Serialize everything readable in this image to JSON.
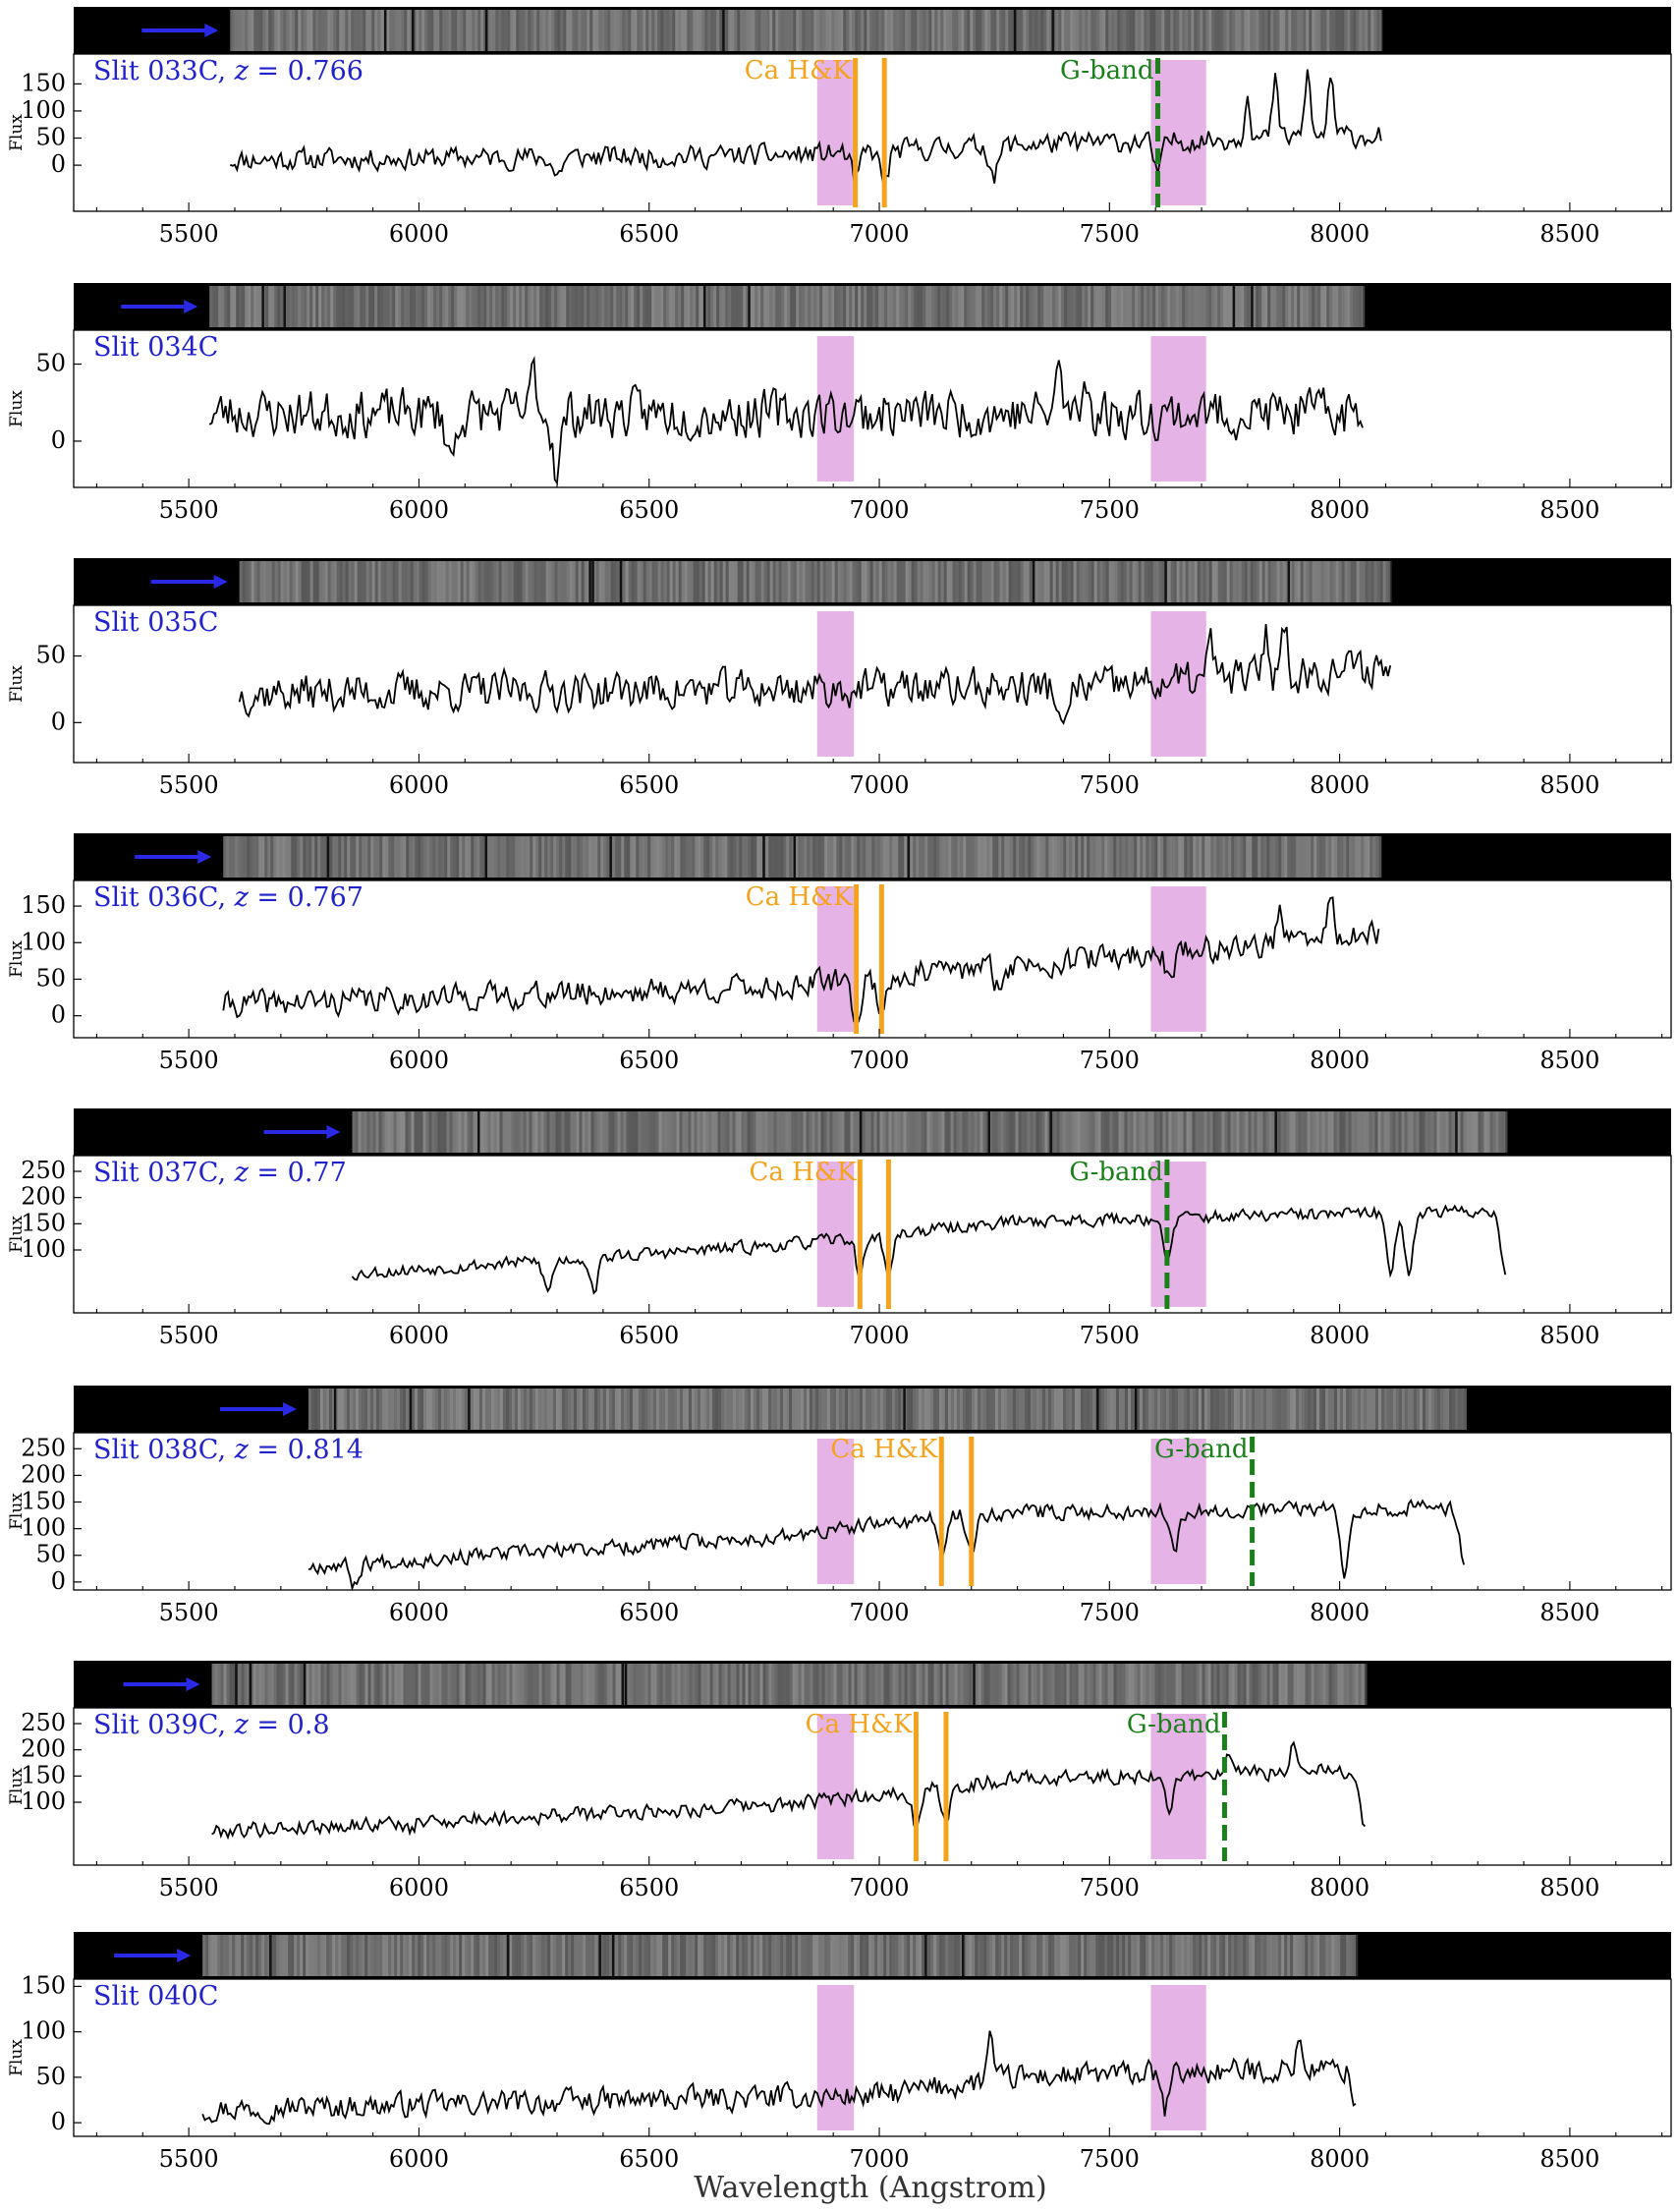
{
  "figure": {
    "xlabel": "Wavelength (Angstrom)"
  },
  "colors": {
    "label": "#2222cc",
    "arrow": "#2a2ae6",
    "ca": "#f5a31c",
    "gband": "#1a801a",
    "band": "#e6b3e6",
    "spectrum": "#000000"
  },
  "chart_data": {
    "type": "line",
    "xlim": [
      5250,
      8720
    ],
    "xticks": [
      5500,
      6000,
      6500,
      7000,
      7500,
      8000,
      8500
    ],
    "xtick_labels": [
      "5500",
      "6000",
      "6500",
      "7000",
      "7500",
      "8000",
      "8500"
    ],
    "atmospheric_bands": [
      [
        6865,
        6945
      ],
      [
        7590,
        7710
      ]
    ],
    "panels": [
      {
        "slit": "Slit 033C",
        "z": "0.766",
        "ylabel": "Flux",
        "ylim": [
          -85,
          205
        ],
        "yticks": [
          0,
          50,
          100,
          150
        ],
        "ca_label": "Ca H&K",
        "ca_lines": [
          6948,
          7011
        ],
        "gband_label": "G-band",
        "gband_x": 7605,
        "xrange": [
          5590,
          8090
        ],
        "base": 10,
        "trend": [
          [
            5590,
            0
          ],
          [
            6800,
            8
          ],
          [
            7300,
            28
          ],
          [
            8090,
            45
          ]
        ],
        "noise": 18,
        "seed": 11,
        "dips": [
          [
            6948,
            -55
          ],
          [
            7011,
            -60
          ],
          [
            7605,
            -60
          ],
          [
            6300,
            -35
          ],
          [
            7250,
            -55
          ]
        ],
        "spikes": [
          [
            7800,
            90
          ],
          [
            7860,
            105
          ],
          [
            7930,
            120
          ],
          [
            7980,
            115
          ]
        ]
      },
      {
        "slit": "Slit 034C",
        "z": "",
        "ylabel": "Flux",
        "ylim": [
          -30,
          72
        ],
        "yticks": [
          0,
          50
        ],
        "ca_label": "",
        "ca_lines": [],
        "gband_label": "",
        "gband_x": null,
        "xrange": [
          5545,
          8050
        ],
        "base": 18,
        "trend": [
          [
            5545,
            0
          ],
          [
            8050,
            0
          ]
        ],
        "noise": 14,
        "seed": 23,
        "dips": [
          [
            6300,
            -35
          ],
          [
            6070,
            -30
          ]
        ],
        "spikes": [
          [
            6250,
            30
          ],
          [
            7390,
            32
          ],
          [
            7450,
            25
          ]
        ]
      },
      {
        "slit": "Slit 035C",
        "z": "",
        "ylabel": "Flux",
        "ylim": [
          -30,
          88
        ],
        "yticks": [
          0,
          50
        ],
        "ca_label": "",
        "ca_lines": [],
        "gband_label": "",
        "gband_x": null,
        "xrange": [
          5610,
          8110
        ],
        "base": 22,
        "trend": [
          [
            5610,
            0
          ],
          [
            7500,
            5
          ],
          [
            8110,
            20
          ]
        ],
        "noise": 13,
        "seed": 37,
        "dips": [
          [
            7400,
            -40
          ]
        ],
        "spikes": [
          [
            7840,
            35
          ],
          [
            7880,
            40
          ],
          [
            7720,
            30
          ]
        ]
      },
      {
        "slit": "Slit 036C",
        "z": "0.767",
        "ylabel": "Flux",
        "ylim": [
          -30,
          185
        ],
        "yticks": [
          0,
          50,
          100,
          150
        ],
        "ca_label": "Ca H&K",
        "ca_lines": [
          6950,
          7005
        ],
        "gband_label": "",
        "gband_x": null,
        "xrange": [
          5575,
          8085
        ],
        "base": 15,
        "trend": [
          [
            5575,
            0
          ],
          [
            6800,
            25
          ],
          [
            7300,
            55
          ],
          [
            8085,
            95
          ]
        ],
        "noise": 16,
        "seed": 41,
        "dips": [
          [
            6950,
            -55
          ],
          [
            7005,
            -45
          ],
          [
            7630,
            -30
          ],
          [
            7260,
            -30
          ]
        ],
        "spikes": [
          [
            7870,
            55
          ],
          [
            7980,
            70
          ]
        ]
      },
      {
        "slit": "Slit 037C",
        "z": "0.77",
        "ylabel": "Flux",
        "ylim": [
          -20,
          280
        ],
        "yticks": [
          100,
          150,
          200,
          250
        ],
        "ca_label": "Ca H&K",
        "ca_lines": [
          6958,
          7020
        ],
        "gband_label": "G-band",
        "gband_x": 7625,
        "xrange": [
          5855,
          8360
        ],
        "base": 55,
        "trend": [
          [
            5855,
            0
          ],
          [
            6800,
            55
          ],
          [
            7300,
            100
          ],
          [
            8360,
            120
          ]
        ],
        "noise": 11,
        "seed": 53,
        "dips": [
          [
            6958,
            -70
          ],
          [
            7020,
            -80
          ],
          [
            7625,
            -90
          ],
          [
            6280,
            -60
          ],
          [
            6380,
            -60
          ],
          [
            8110,
            -110
          ],
          [
            8150,
            -110
          ],
          [
            8360,
            -120
          ]
        ],
        "spikes": []
      },
      {
        "slit": "Slit 038C",
        "z": "0.814",
        "ylabel": "Flux",
        "ylim": [
          -15,
          280
        ],
        "yticks": [
          0,
          50,
          100,
          150,
          200,
          250
        ],
        "ca_label": "Ca H&K",
        "ca_lines": [
          7135,
          7200
        ],
        "gband_label": "G-band",
        "gband_x": 7810,
        "xrange": [
          5760,
          8270
        ],
        "base": 30,
        "trend": [
          [
            5760,
            0
          ],
          [
            6800,
            55
          ],
          [
            7200,
            100
          ],
          [
            8270,
            110
          ]
        ],
        "noise": 13,
        "seed": 67,
        "dips": [
          [
            7135,
            -80
          ],
          [
            7200,
            -80
          ],
          [
            7640,
            -75
          ],
          [
            5860,
            -40
          ],
          [
            8010,
            -120
          ],
          [
            8270,
            -110
          ]
        ],
        "spikes": []
      },
      {
        "slit": "Slit 039C",
        "z": "0.8",
        "ylabel": "Flux",
        "ylim": [
          -20,
          280
        ],
        "yticks": [
          100,
          150,
          200,
          250
        ],
        "ca_label": "Ca H&K",
        "ca_lines": [
          7080,
          7145
        ],
        "gband_label": "G-band",
        "gband_x": 7750,
        "xrange": [
          5550,
          8055
        ],
        "base": 45,
        "trend": [
          [
            5550,
            0
          ],
          [
            6800,
            50
          ],
          [
            7300,
            100
          ],
          [
            8055,
            115
          ]
        ],
        "noise": 13,
        "seed": 79,
        "dips": [
          [
            7080,
            -65
          ],
          [
            7145,
            -75
          ],
          [
            7630,
            -70
          ],
          [
            8055,
            -110
          ],
          [
            5980,
            -20
          ]
        ],
        "spikes": [
          [
            7900,
            60
          ],
          [
            7760,
            35
          ]
        ]
      },
      {
        "slit": "Slit 040C",
        "z": "",
        "ylabel": "Flux",
        "ylim": [
          -15,
          158
        ],
        "yticks": [
          0,
          50,
          100,
          150
        ],
        "ca_label": "",
        "ca_lines": [],
        "gband_label": "",
        "gband_x": null,
        "xrange": [
          5530,
          8035
        ],
        "base": 15,
        "trend": [
          [
            5530,
            0
          ],
          [
            7000,
            15
          ],
          [
            7300,
            35
          ],
          [
            8035,
            45
          ]
        ],
        "noise": 12,
        "seed": 97,
        "dips": [
          [
            7620,
            -40
          ],
          [
            8035,
            -40
          ]
        ],
        "spikes": [
          [
            7240,
            50
          ],
          [
            7910,
            35
          ]
        ]
      }
    ]
  }
}
